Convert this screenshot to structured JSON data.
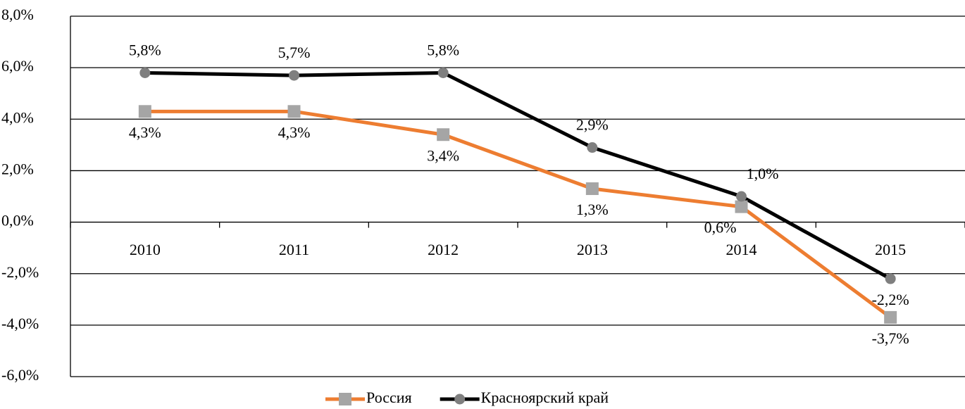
{
  "chart_data": {
    "type": "line",
    "categories": [
      "2010",
      "2011",
      "2012",
      "2013",
      "2014",
      "2015"
    ],
    "series": [
      {
        "name": "Россия",
        "color": "#ed7d31",
        "marker": "square",
        "marker_color": "#a5a5a5",
        "values": [
          4.3,
          4.3,
          3.4,
          1.3,
          0.6,
          -3.7
        ],
        "value_labels": [
          "4,3%",
          "4,3%",
          "3,4%",
          "1,3%",
          "0,6%",
          "-3,7%"
        ]
      },
      {
        "name": "Красноярский край",
        "color": "#000000",
        "marker": "circle",
        "marker_color": "#7f7f7f",
        "values": [
          5.8,
          5.7,
          5.8,
          2.9,
          1.0,
          -2.2
        ],
        "value_labels": [
          "5,8%",
          "5,7%",
          "5,8%",
          "2,9%",
          "1,0%",
          "-2,2%"
        ]
      }
    ],
    "ylim": [
      -6,
      8
    ],
    "yticks": [
      {
        "value": -6,
        "label": "-6,0%"
      },
      {
        "value": -4,
        "label": "-4,0%"
      },
      {
        "value": -2,
        "label": "-2,0%"
      },
      {
        "value": 0,
        "label": "0,0%"
      },
      {
        "value": 2,
        "label": "2,0%"
      },
      {
        "value": 4,
        "label": "4,0%"
      },
      {
        "value": 6,
        "label": "6,0%"
      },
      {
        "value": 8,
        "label": "8,0%"
      }
    ],
    "grid": true,
    "legend": "bottom"
  }
}
